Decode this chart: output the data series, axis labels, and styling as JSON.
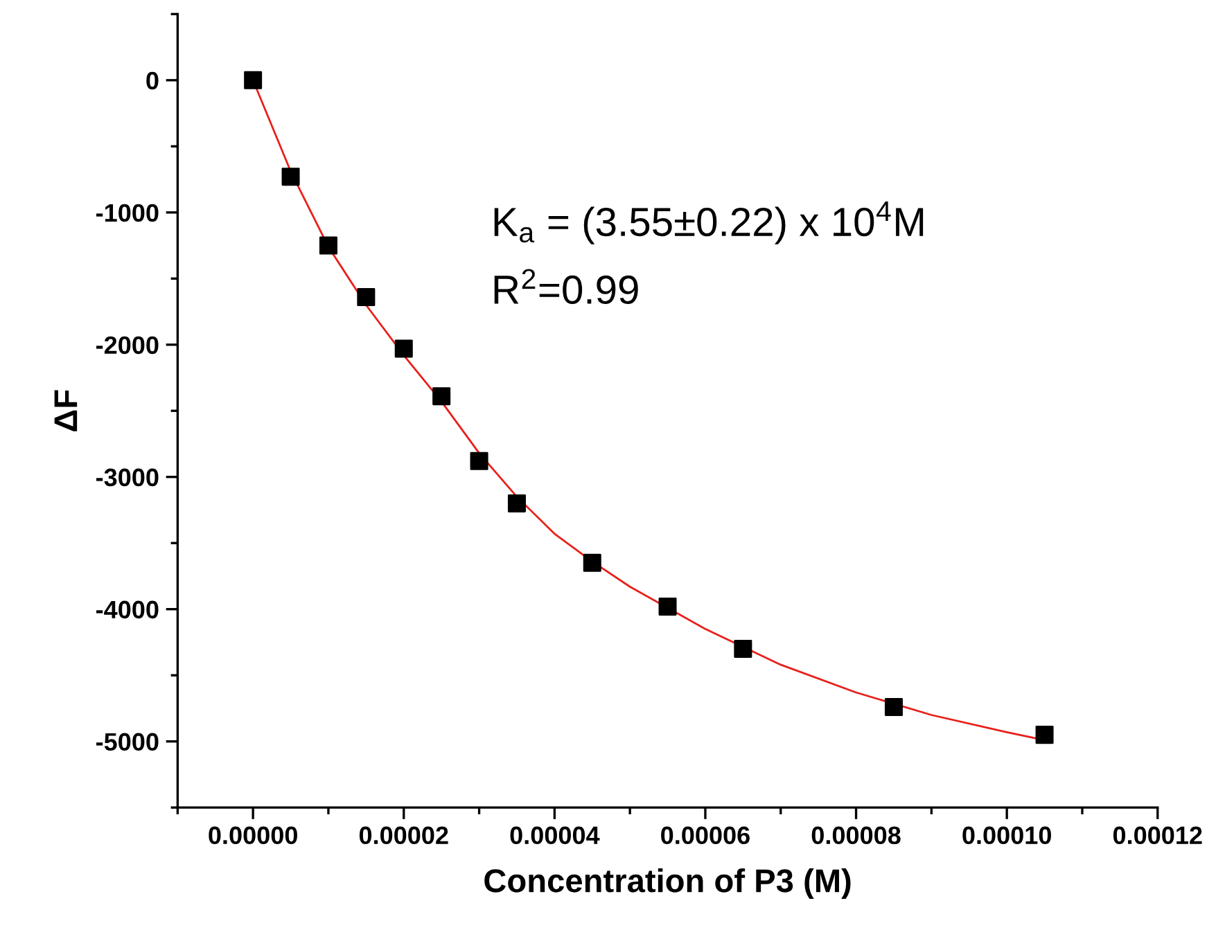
{
  "chart_data": {
    "type": "scatter",
    "xlabel": "Concentration of P3 (M)",
    "ylabel": "ΔF",
    "annotations": [
      "K$_{a}$ = (3.55±0.22) x 10$^{4}$M",
      "R$^{2}$=0.99"
    ],
    "series": [
      {
        "color": "#000000",
        "marker": "square",
        "x": [
          0,
          5e-06,
          1e-05,
          1.5e-05,
          2e-05,
          2.5e-05,
          3e-05,
          3.5e-05,
          4.5e-05,
          5.5e-05,
          6.5e-05,
          8.5e-05,
          0.000105
        ],
        "values": [
          0,
          -730,
          -1250,
          -1640,
          -2030,
          -2390,
          -2880,
          -3200,
          -3650,
          -3980,
          -4300,
          -4740,
          -4950
        ]
      },
      {
        "type": "line",
        "color": "#e8201a",
        "marker": "none",
        "line_style": "solid",
        "x": [
          0,
          5e-06,
          1e-05,
          1.5e-05,
          2e-05,
          2.5e-05,
          3e-05,
          3.5e-05,
          4e-05,
          4.5e-05,
          5e-05,
          6e-05,
          7e-05,
          8e-05,
          9e-05,
          0.0001,
          0.000105
        ],
        "values": [
          0,
          -690,
          -1260,
          -1700,
          -2080,
          -2430,
          -2820,
          -3150,
          -3430,
          -3640,
          -3830,
          -4150,
          -4420,
          -4630,
          -4800,
          -4930,
          -4990
        ]
      }
    ],
    "xlim": [
      -1e-05,
      0.00012
    ],
    "xticks": [
      {
        "value": 0,
        "label": "0.00000"
      },
      {
        "value": 2e-05,
        "label": "0.00002"
      },
      {
        "value": 4e-05,
        "label": "0.00004"
      },
      {
        "value": 6e-05,
        "label": "0.00006"
      },
      {
        "value": 8e-05,
        "label": "0.00008"
      },
      {
        "value": 0.0001,
        "label": "0.00010"
      },
      {
        "value": 0.00012,
        "label": "0.00012"
      }
    ],
    "ylim": [
      -5500,
      500
    ],
    "yticks": [
      0,
      -1000,
      -2000,
      -3000,
      -4000,
      -5000
    ],
    "grid": false,
    "legend": false
  }
}
